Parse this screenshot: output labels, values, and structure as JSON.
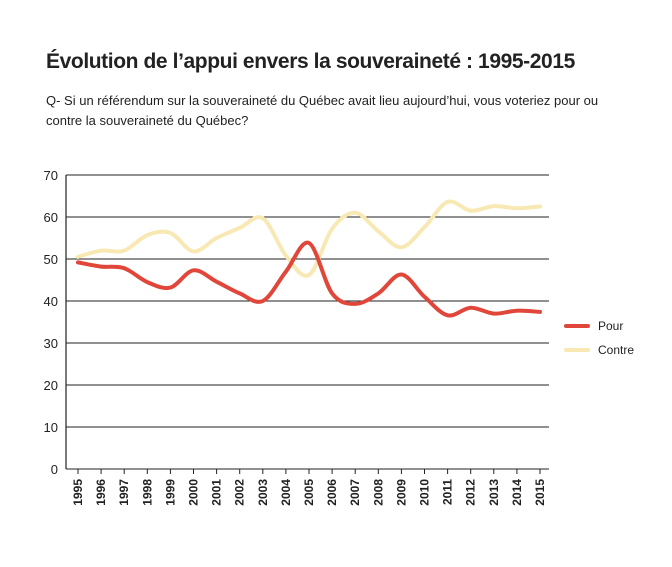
{
  "chart_data": {
    "type": "line",
    "title": "Évolution de l’appui envers la souveraineté : 1995-2015",
    "subtitle": "Q- Si un référendum sur la souveraineté du Québec avait lieu aujourd’hui, vous voteriez pour ou contre la souveraineté du Québec?",
    "xlabel": "",
    "ylabel": "",
    "x": [
      "1995",
      "1996",
      "1997",
      "1998",
      "1999",
      "2000",
      "2001",
      "2002",
      "2003",
      "2004",
      "2005",
      "2006",
      "2007",
      "2008",
      "2009",
      "2010",
      "2011",
      "2012",
      "2013",
      "2014",
      "2015"
    ],
    "ylim": [
      0,
      70
    ],
    "yticks": [
      0,
      10,
      20,
      30,
      40,
      50,
      60,
      70
    ],
    "grid": true,
    "legend_position": "right",
    "series": [
      {
        "name": "Pour",
        "color": "#e0473a",
        "values": [
          49.2,
          48.2,
          47.8,
          44.5,
          43.2,
          47.3,
          44.6,
          41.8,
          40.0,
          47.0,
          53.8,
          41.8,
          39.3,
          41.8,
          46.3,
          41.0,
          36.6,
          38.4,
          37.0,
          37.7,
          37.4
        ]
      },
      {
        "name": "Contre",
        "color": "#f8e9b4",
        "values": [
          50.5,
          52.0,
          52.0,
          55.7,
          56.2,
          51.8,
          55.0,
          57.4,
          59.7,
          50.8,
          46.2,
          57.2,
          61.0,
          56.6,
          52.8,
          57.6,
          63.6,
          61.5,
          62.6,
          62.1,
          62.5
        ]
      }
    ]
  }
}
